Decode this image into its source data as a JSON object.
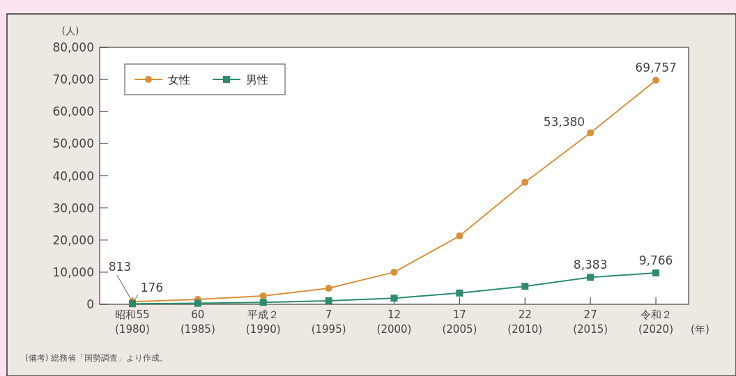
{
  "chart_data": {
    "type": "line",
    "ylabel": "(人)",
    "xlabel": "(年)",
    "categories": [
      "昭和55\n(1980)",
      "60\n(1985)",
      "平成２\n(1990)",
      "7\n(1995)",
      "12\n(2000)",
      "17\n(2005)",
      "22\n(2010)",
      "27\n(2015)",
      "令和２\n(2020)"
    ],
    "series": [
      {
        "name": "女性",
        "color": "#d8903a",
        "marker": "circle",
        "values": [
          813,
          1500,
          2600,
          5000,
          10000,
          21300,
          38000,
          53380,
          69757
        ],
        "value_labels": [
          "813",
          null,
          null,
          null,
          null,
          null,
          null,
          "53,380",
          "69,757"
        ]
      },
      {
        "name": "男性",
        "color": "#2e8b6e",
        "marker": "square",
        "values": [
          176,
          300,
          600,
          1100,
          1900,
          3500,
          5600,
          8383,
          9766
        ],
        "value_labels": [
          "176",
          null,
          null,
          null,
          null,
          null,
          null,
          "8,383",
          "9,766"
        ]
      }
    ],
    "ylim": [
      0,
      80000
    ],
    "yticks": [
      {
        "value": 0,
        "label": "0"
      },
      {
        "value": 10000,
        "label": "10,000"
      },
      {
        "value": 20000,
        "label": "20,000"
      },
      {
        "value": 30000,
        "label": "30,000"
      },
      {
        "value": 40000,
        "label": "40,000"
      },
      {
        "value": 50000,
        "label": "50,000"
      },
      {
        "value": 60000,
        "label": "60,000"
      },
      {
        "value": 70000,
        "label": "70,000"
      },
      {
        "value": 80000,
        "label": "80,000"
      }
    ],
    "legend": "top left",
    "grid": false,
    "annotations": [
      "(備考) 総務省「国勢調査」より作成。"
    ]
  }
}
